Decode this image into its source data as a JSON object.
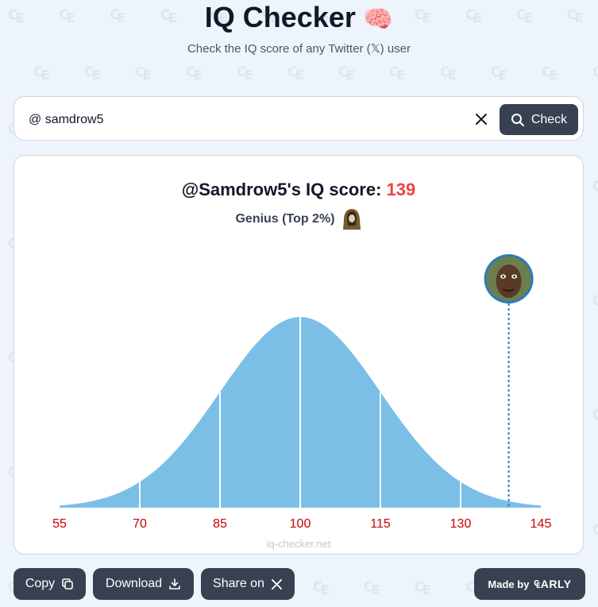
{
  "header": {
    "title": "IQ Checker",
    "title_emoji": "🧠",
    "subtitle": "Check the IQ score of any Twitter (𝕏) user"
  },
  "search": {
    "value": "@ samdrow5",
    "button_label": "Check",
    "icons": {
      "clear": "close-icon",
      "search": "search-icon"
    }
  },
  "result": {
    "heading_prefix": "@Samdrow5's IQ score: ",
    "score": "139",
    "rank_label": "Genius (Top 2%)",
    "rank_icon": "hooded-figure-icon",
    "avatar_icon": "user-avatar"
  },
  "chart_data": {
    "type": "area",
    "distribution": "normal",
    "mean": 100,
    "sd": 15,
    "x_ticks": [
      55,
      70,
      85,
      100,
      115,
      130,
      145
    ],
    "xlim": [
      55,
      145
    ],
    "marker_value": 139,
    "fill_color": "#7bbfe6",
    "tick_color": "#cc0000",
    "marker_color": "#2b7bb9"
  },
  "footer": {
    "watermark": "iq-checker.net",
    "copy_label": "Copy",
    "download_label": "Download",
    "share_label": "Share on",
    "made_by_label": "Made by",
    "made_by_brand": "₠ARLY"
  },
  "colors": {
    "background": "#eef4fc",
    "button": "#374151",
    "score": "#ef4444"
  }
}
